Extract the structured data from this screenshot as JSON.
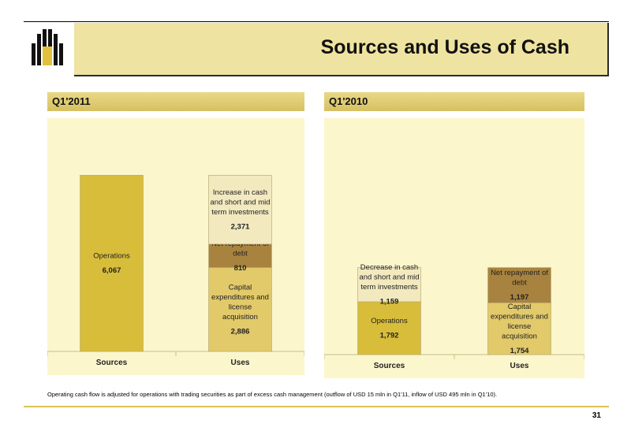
{
  "title": "Sources and Uses of Cash",
  "page_number": "31",
  "footnote": "Operating cash flow is adjusted for operations with trading securities as part of excess cash management (outflow of USD 15 mln in Q1'11, inflow of USD 495 mln in Q1'10).",
  "colors": {
    "header_bg": "#efe3a1",
    "panel_bg": "#fbf6cc",
    "operations": "#d8bd3a",
    "capex": "#e2c96a",
    "debt": "#a8833f",
    "cash": "#f2e9bf",
    "logo": "#111111",
    "logo_accent": "#e0c03c"
  },
  "chart_data": [
    {
      "type": "bar",
      "stacked": true,
      "title": "Q1'2011",
      "categories": [
        "Sources",
        "Uses"
      ],
      "ylim": [
        0,
        7000
      ],
      "segments": [
        {
          "category": "Sources",
          "label": "Operations",
          "value": 6067,
          "value_label": "6,067",
          "color_key": "operations"
        },
        {
          "category": "Uses",
          "label": "Capital expenditures and license acquisition",
          "value": 2886,
          "value_label": "2,886",
          "color_key": "capex"
        },
        {
          "category": "Uses",
          "label": "Net repayment of debt",
          "value": 810,
          "value_label": "810",
          "color_key": "debt"
        },
        {
          "category": "Uses",
          "label": "Increase in cash and short and mid term investments",
          "value": 2371,
          "value_label": "2,371",
          "color_key": "cash"
        }
      ]
    },
    {
      "type": "bar",
      "stacked": true,
      "title": "Q1'2010",
      "categories": [
        "Sources",
        "Uses"
      ],
      "ylim": [
        0,
        7000
      ],
      "segments": [
        {
          "category": "Sources",
          "label": "Operations",
          "value": 1792,
          "value_label": "1,792",
          "color_key": "operations"
        },
        {
          "category": "Sources",
          "label": "Decrease in cash and short and mid term investments",
          "value": 1159,
          "value_label": "1,159",
          "color_key": "cash"
        },
        {
          "category": "Uses",
          "label": "Capital expenditures and license acquisition",
          "value": 1754,
          "value_label": "1,754",
          "color_key": "capex"
        },
        {
          "category": "Uses",
          "label": "Net repayment of debt",
          "value": 1197,
          "value_label": "1,197",
          "color_key": "debt"
        }
      ]
    }
  ]
}
